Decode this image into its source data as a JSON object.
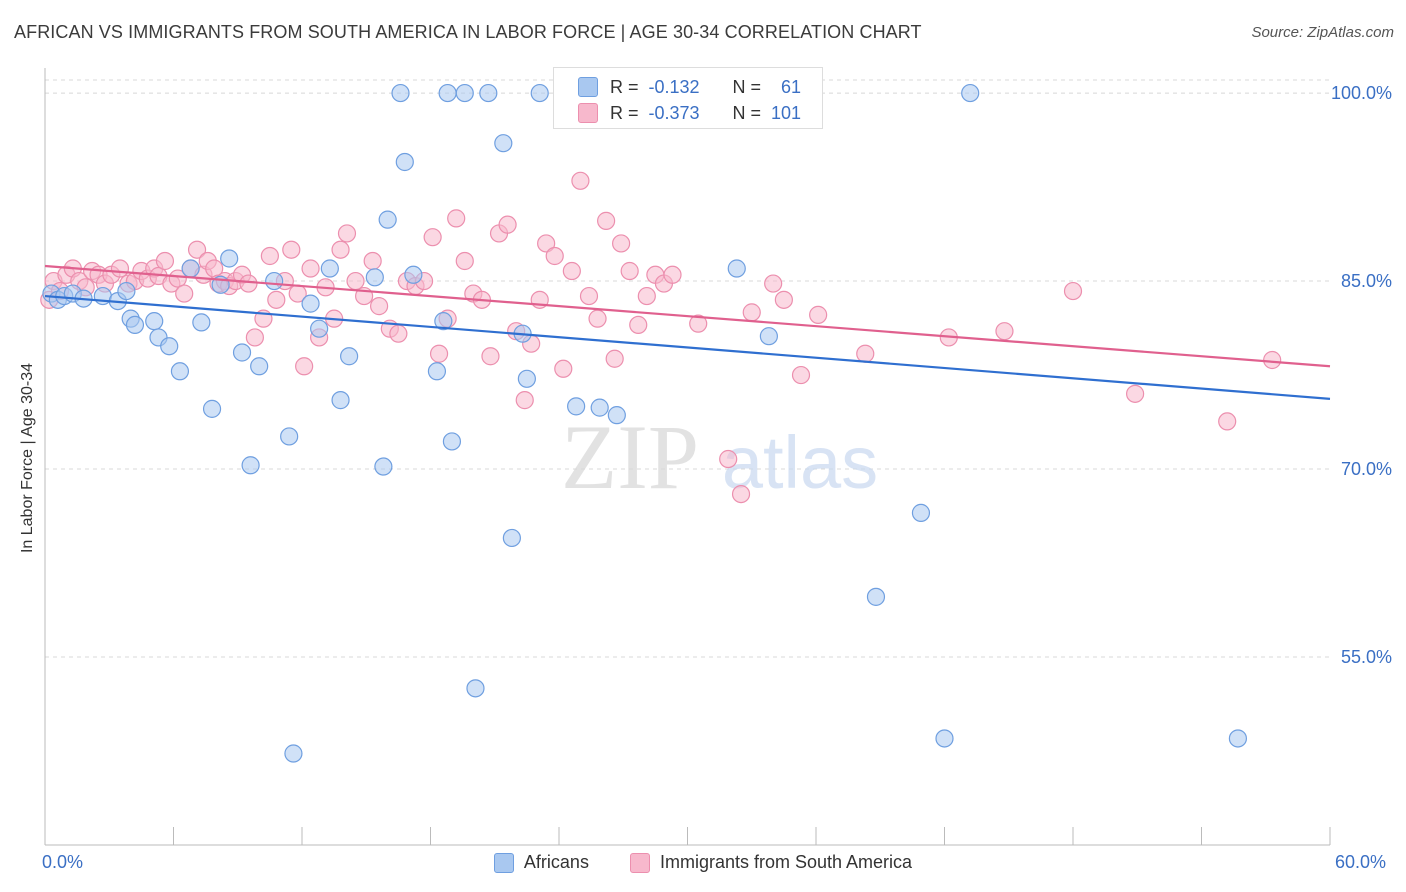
{
  "title": "AFRICAN VS IMMIGRANTS FROM SOUTH AMERICA IN LABOR FORCE | AGE 30-34 CORRELATION CHART",
  "source": "Source: ZipAtlas.com",
  "watermark": {
    "zip": "ZIP",
    "atlas": "atlas"
  },
  "colors": {
    "blue_fill": "#a9c8f0",
    "blue_stroke": "#6f9fe0",
    "blue_line": "#2f6fd0",
    "pink_fill": "#f7b8cc",
    "pink_stroke": "#ec8fae",
    "pink_line": "#e0608e",
    "axis_text": "#3a6fc4",
    "grid": "#d8d8d8"
  },
  "stats": {
    "rows": [
      {
        "r_label": "R =",
        "r_value": "-0.132",
        "n_label": "N =",
        "n_value": "61"
      },
      {
        "r_label": "R =",
        "r_value": "-0.373",
        "n_label": "N =",
        "n_value": "101"
      }
    ]
  },
  "chart_data": {
    "type": "scatter",
    "title": "AFRICAN VS IMMIGRANTS FROM SOUTH AMERICA IN LABOR FORCE | AGE 30-34 CORRELATION CHART",
    "xlabel": "",
    "ylabel": "In Labor Force | Age 30-34",
    "xlim": [
      0,
      60
    ],
    "ylim": [
      40.0,
      102.0
    ],
    "x_tick_labels": [
      "0.0%",
      "60.0%"
    ],
    "y_ticks": [
      55.0,
      70.0,
      85.0,
      100.0
    ],
    "y_tick_labels": [
      "55.0%",
      "70.0%",
      "85.0%",
      "100.0%"
    ],
    "grid": true,
    "legend": "bottom-center",
    "series": [
      {
        "name": "Africans",
        "trend": {
          "x": [
            0,
            60
          ],
          "y": [
            83.8,
            75.6
          ]
        },
        "points": [
          [
            0.3,
            84.0
          ],
          [
            0.6,
            83.5
          ],
          [
            0.9,
            83.8
          ],
          [
            1.3,
            84.0
          ],
          [
            1.8,
            83.6
          ],
          [
            2.7,
            83.8
          ],
          [
            3.4,
            83.4
          ],
          [
            4.0,
            82.0
          ],
          [
            3.8,
            84.2
          ],
          [
            4.2,
            81.5
          ],
          [
            5.1,
            81.8
          ],
          [
            5.3,
            80.5
          ],
          [
            5.8,
            79.8
          ],
          [
            6.3,
            77.8
          ],
          [
            6.8,
            86.0
          ],
          [
            7.3,
            81.7
          ],
          [
            7.8,
            74.8
          ],
          [
            8.2,
            84.7
          ],
          [
            8.6,
            86.8
          ],
          [
            9.2,
            79.3
          ],
          [
            9.6,
            70.3
          ],
          [
            10.0,
            78.2
          ],
          [
            10.7,
            85.0
          ],
          [
            11.4,
            72.6
          ],
          [
            11.6,
            47.3
          ],
          [
            12.4,
            83.2
          ],
          [
            12.8,
            81.2
          ],
          [
            13.3,
            86.0
          ],
          [
            13.8,
            75.5
          ],
          [
            14.2,
            79.0
          ],
          [
            15.4,
            85.3
          ],
          [
            15.8,
            70.2
          ],
          [
            16.0,
            89.9
          ],
          [
            16.6,
            100.0
          ],
          [
            16.8,
            94.5
          ],
          [
            17.2,
            85.5
          ],
          [
            18.3,
            77.8
          ],
          [
            18.6,
            81.8
          ],
          [
            18.8,
            100.0
          ],
          [
            19.0,
            72.2
          ],
          [
            19.6,
            100.0
          ],
          [
            20.1,
            52.5
          ],
          [
            20.7,
            100.0
          ],
          [
            21.4,
            96.0
          ],
          [
            21.8,
            64.5
          ],
          [
            22.3,
            80.8
          ],
          [
            22.5,
            77.2
          ],
          [
            23.1,
            100.0
          ],
          [
            24.2,
            100.0
          ],
          [
            24.8,
            75.0
          ],
          [
            25.9,
            74.9
          ],
          [
            26.7,
            74.3
          ],
          [
            28.5,
            100.0
          ],
          [
            31.8,
            100.0
          ],
          [
            32.3,
            86.0
          ],
          [
            33.8,
            80.6
          ],
          [
            38.8,
            59.8
          ],
          [
            40.9,
            66.5
          ],
          [
            42.0,
            48.5
          ],
          [
            43.2,
            100.0
          ],
          [
            55.7,
            48.5
          ]
        ]
      },
      {
        "name": "Immigrants from South America",
        "trend": {
          "x": [
            0,
            60
          ],
          "y": [
            86.2,
            78.2
          ]
        },
        "points": [
          [
            0.2,
            83.5
          ],
          [
            0.4,
            85.0
          ],
          [
            0.7,
            84.2
          ],
          [
            1.0,
            85.5
          ],
          [
            1.3,
            86.0
          ],
          [
            1.6,
            85.0
          ],
          [
            1.9,
            84.5
          ],
          [
            2.2,
            85.8
          ],
          [
            2.5,
            85.5
          ],
          [
            2.8,
            84.8
          ],
          [
            3.1,
            85.5
          ],
          [
            3.5,
            86.0
          ],
          [
            3.9,
            84.8
          ],
          [
            4.2,
            85.0
          ],
          [
            4.5,
            85.8
          ],
          [
            4.8,
            85.2
          ],
          [
            5.1,
            86.0
          ],
          [
            5.3,
            85.4
          ],
          [
            5.6,
            86.6
          ],
          [
            5.9,
            84.8
          ],
          [
            6.2,
            85.2
          ],
          [
            6.5,
            84.0
          ],
          [
            6.8,
            86.0
          ],
          [
            7.1,
            87.5
          ],
          [
            7.4,
            85.5
          ],
          [
            7.6,
            86.6
          ],
          [
            7.9,
            86.0
          ],
          [
            8.1,
            84.8
          ],
          [
            8.4,
            85.0
          ],
          [
            8.6,
            84.6
          ],
          [
            8.9,
            85.0
          ],
          [
            9.2,
            85.5
          ],
          [
            9.5,
            84.8
          ],
          [
            9.8,
            80.5
          ],
          [
            10.2,
            82.0
          ],
          [
            10.5,
            87.0
          ],
          [
            10.8,
            83.5
          ],
          [
            11.2,
            85.0
          ],
          [
            11.5,
            87.5
          ],
          [
            11.8,
            84.0
          ],
          [
            12.1,
            78.2
          ],
          [
            12.4,
            86.0
          ],
          [
            12.8,
            80.5
          ],
          [
            13.1,
            84.5
          ],
          [
            13.5,
            82.0
          ],
          [
            13.8,
            87.5
          ],
          [
            14.1,
            88.8
          ],
          [
            14.5,
            85.0
          ],
          [
            14.9,
            83.8
          ],
          [
            15.3,
            86.6
          ],
          [
            15.6,
            83.0
          ],
          [
            16.1,
            81.2
          ],
          [
            16.5,
            80.8
          ],
          [
            16.9,
            85.0
          ],
          [
            17.3,
            84.6
          ],
          [
            17.7,
            85.0
          ],
          [
            18.1,
            88.5
          ],
          [
            18.4,
            79.2
          ],
          [
            18.8,
            82.0
          ],
          [
            19.2,
            90.0
          ],
          [
            19.6,
            86.6
          ],
          [
            20.0,
            84.0
          ],
          [
            20.4,
            83.5
          ],
          [
            20.8,
            79.0
          ],
          [
            21.2,
            88.8
          ],
          [
            21.6,
            89.5
          ],
          [
            22.0,
            81.0
          ],
          [
            22.4,
            75.5
          ],
          [
            22.7,
            80.0
          ],
          [
            23.1,
            83.5
          ],
          [
            23.4,
            88.0
          ],
          [
            23.8,
            87.0
          ],
          [
            24.2,
            78.0
          ],
          [
            24.6,
            85.8
          ],
          [
            25.0,
            93.0
          ],
          [
            25.4,
            83.8
          ],
          [
            25.8,
            82.0
          ],
          [
            26.2,
            89.8
          ],
          [
            26.6,
            78.8
          ],
          [
            26.9,
            88.0
          ],
          [
            27.3,
            85.8
          ],
          [
            27.7,
            81.5
          ],
          [
            28.1,
            83.8
          ],
          [
            28.5,
            85.5
          ],
          [
            28.9,
            84.8
          ],
          [
            29.3,
            85.5
          ],
          [
            30.5,
            81.6
          ],
          [
            31.9,
            70.8
          ],
          [
            32.5,
            68.0
          ],
          [
            34.0,
            84.8
          ],
          [
            34.5,
            83.5
          ],
          [
            35.3,
            77.5
          ],
          [
            36.1,
            82.3
          ],
          [
            42.2,
            80.5
          ],
          [
            48.0,
            84.2
          ],
          [
            50.9,
            76.0
          ],
          [
            55.2,
            73.8
          ],
          [
            57.3,
            78.7
          ],
          [
            33.0,
            82.5
          ],
          [
            38.3,
            79.2
          ],
          [
            44.8,
            81.0
          ]
        ]
      }
    ]
  },
  "axes": {
    "y_title": "In Labor Force | Age 30-34",
    "x_left_label": "0.0%",
    "x_right_label": "60.0%"
  },
  "legend": {
    "items": [
      {
        "label": "Africans"
      },
      {
        "label": "Immigrants from South America"
      }
    ]
  }
}
